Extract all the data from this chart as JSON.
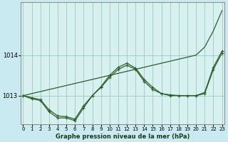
{
  "title": "Graphe pression niveau de la mer (hPa)",
  "bg_color": "#c8eaf0",
  "plot_bg_color": "#d8f0f0",
  "grid_color": "#99ccbb",
  "line_color": "#2d5e2d",
  "x_ticks": [
    0,
    1,
    2,
    3,
    4,
    5,
    6,
    7,
    8,
    9,
    10,
    11,
    12,
    13,
    14,
    15,
    16,
    17,
    18,
    19,
    20,
    21,
    22,
    23
  ],
  "y_ticks": [
    1013,
    1014
  ],
  "ylim": [
    1012.3,
    1015.3
  ],
  "xlim": [
    -0.3,
    23.3
  ],
  "series1_straight": [
    1013.0,
    1013.05,
    1013.1,
    1013.15,
    1013.2,
    1013.25,
    1013.3,
    1013.35,
    1013.4,
    1013.45,
    1013.5,
    1013.55,
    1013.6,
    1013.65,
    1013.7,
    1013.75,
    1013.8,
    1013.85,
    1013.9,
    1013.95,
    1014.0,
    1014.2,
    1014.6,
    1015.1
  ],
  "series2": [
    1013.0,
    1012.95,
    1012.9,
    1012.65,
    1012.5,
    1012.48,
    1012.42,
    1012.75,
    1013.0,
    1013.2,
    1013.45,
    1013.65,
    1013.75,
    1013.65,
    1013.35,
    1013.15,
    1013.05,
    1013.0,
    1013.0,
    1013.0,
    1013.0,
    1013.05,
    1013.65,
    1014.05
  ],
  "series3": [
    1013.0,
    1012.92,
    1012.88,
    1012.6,
    1012.45,
    1012.45,
    1012.38,
    1012.7,
    1013.0,
    1013.22,
    1013.5,
    1013.7,
    1013.8,
    1013.68,
    1013.4,
    1013.2,
    1013.05,
    1013.02,
    1013.0,
    1013.0,
    1013.0,
    1013.08,
    1013.7,
    1014.1
  ]
}
